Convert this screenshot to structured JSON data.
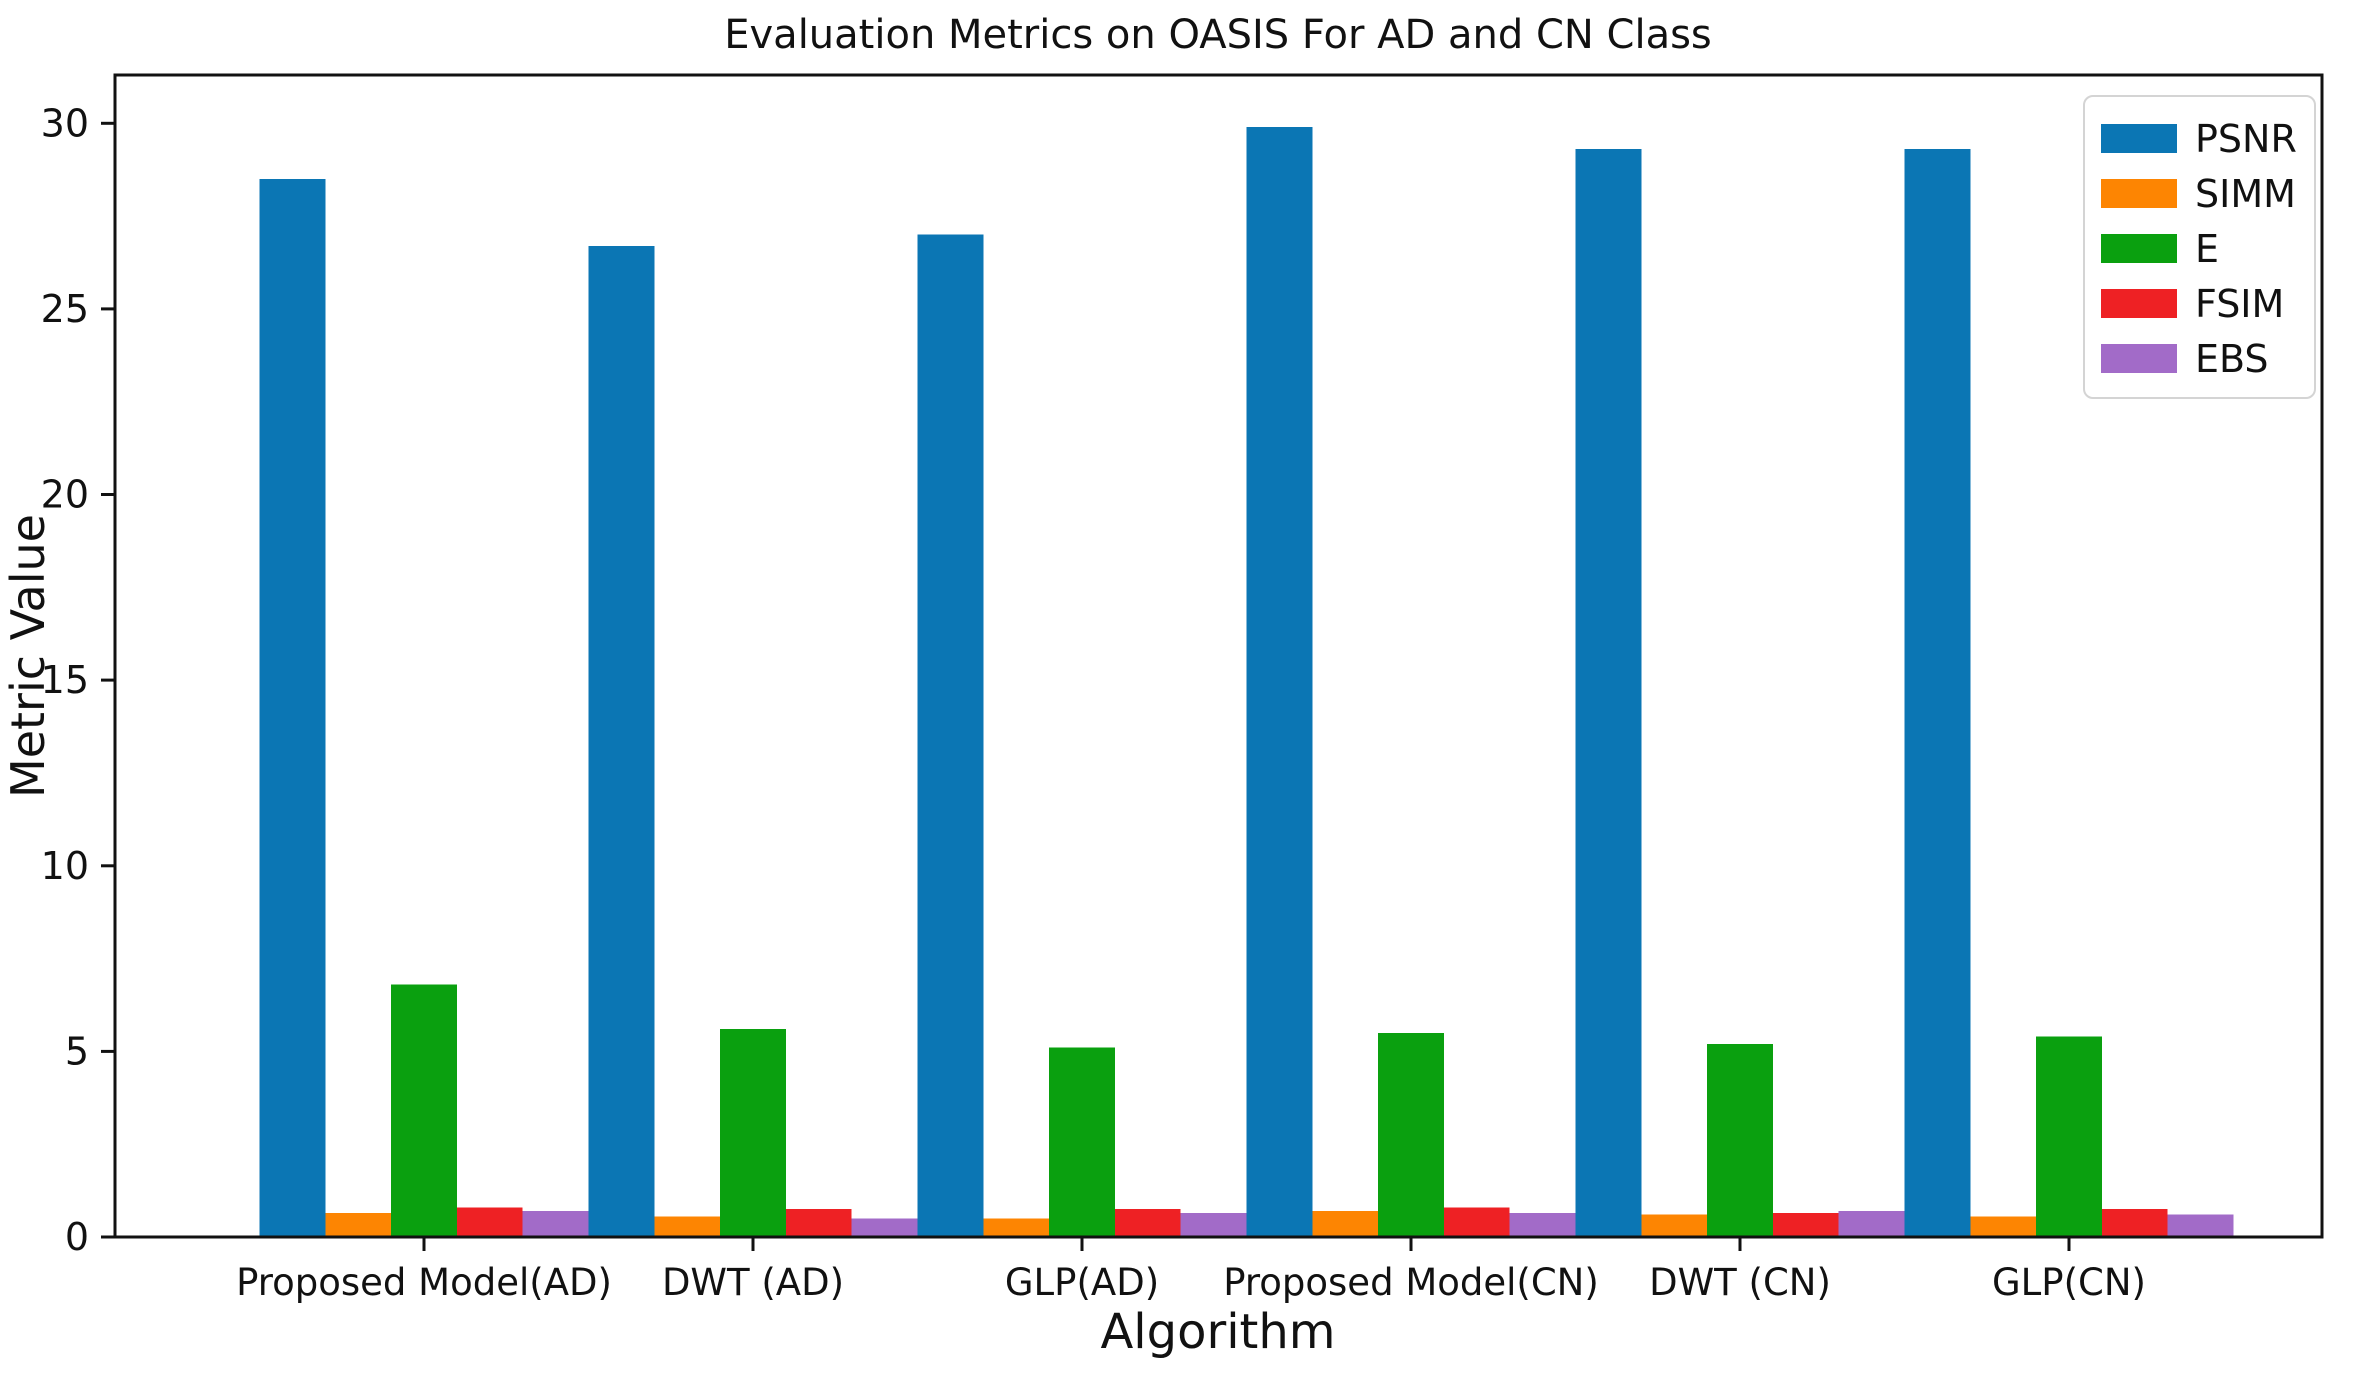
{
  "chart_data": {
    "type": "bar",
    "title": "Evaluation Metrics on OASIS For AD and CN Class",
    "xlabel": "Algorithm",
    "ylabel": "Metric Value",
    "categories": [
      "Proposed Model(AD)",
      "DWT (AD)",
      "GLP(AD)",
      "Proposed Model(CN)",
      "DWT (CN)",
      "GLP(CN)"
    ],
    "series": [
      {
        "name": "PSNR",
        "color": "#0b76b4",
        "values": [
          28.5,
          26.7,
          27.0,
          29.9,
          29.3,
          29.3
        ]
      },
      {
        "name": "SIMM",
        "color": "#fd8502",
        "values": [
          0.65,
          0.55,
          0.5,
          0.7,
          0.6,
          0.55
        ]
      },
      {
        "name": "E",
        "color": "#0aa00f",
        "values": [
          6.8,
          5.6,
          5.1,
          5.5,
          5.2,
          5.4
        ]
      },
      {
        "name": "FSIM",
        "color": "#ee2124",
        "values": [
          0.8,
          0.75,
          0.75,
          0.8,
          0.65,
          0.75
        ]
      },
      {
        "name": "EBS",
        "color": "#a26bc8",
        "values": [
          0.7,
          0.5,
          0.65,
          0.65,
          0.7,
          0.6
        ]
      }
    ],
    "yticks": [
      0,
      5,
      10,
      15,
      20,
      25,
      30
    ],
    "ylim": [
      0,
      31.3
    ],
    "grid": false,
    "legend_position": "upper right",
    "bar_layout": "grouped-contiguous",
    "axis_color": "#111111"
  }
}
